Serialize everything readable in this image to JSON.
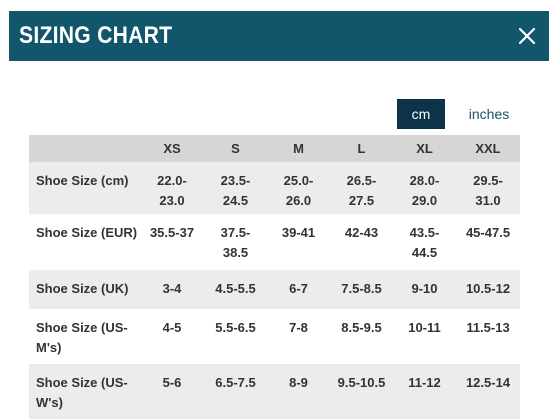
{
  "modal": {
    "title": "SIZING CHART",
    "close_icon": "close-icon"
  },
  "units": {
    "options": [
      "cm",
      "inches"
    ],
    "selected": "cm"
  },
  "table": {
    "headers": [
      "",
      "XS",
      "S",
      "M",
      "L",
      "XL",
      "XXL"
    ],
    "rows": [
      {
        "label": "Shoe Size (cm)",
        "values": [
          "22.0-\n23.0",
          "23.5-\n24.5",
          "25.0-\n26.0",
          "26.5-\n27.5",
          "28.0-\n29.0",
          "29.5-\n31.0"
        ]
      },
      {
        "label": "Shoe Size (EUR)",
        "values": [
          "35.5-37",
          "37.5-\n38.5",
          "39-41",
          "42-43",
          "43.5-\n44.5",
          "45-47.5"
        ]
      },
      {
        "label": "Shoe Size (UK)",
        "values": [
          "3-4",
          "4.5-5.5",
          "6-7",
          "7.5-8.5",
          "9-10",
          "10.5-12"
        ]
      },
      {
        "label": "Shoe Size (US-\nM's)",
        "values": [
          "4-5",
          "5.5-6.5",
          "7-8",
          "8.5-9.5",
          "10-11",
          "11.5-13"
        ]
      },
      {
        "label": "Shoe Size (US-\nW's)",
        "values": [
          "5-6",
          "6.5-7.5",
          "8-9",
          "9.5-10.5",
          "11-12",
          "12.5-14"
        ]
      }
    ]
  },
  "colors": {
    "header_bg": "#12566c",
    "active_unit_bg": "#0d3349",
    "table_header_bg": "#d6d6d6",
    "row_alt_bg": "#ececec"
  }
}
